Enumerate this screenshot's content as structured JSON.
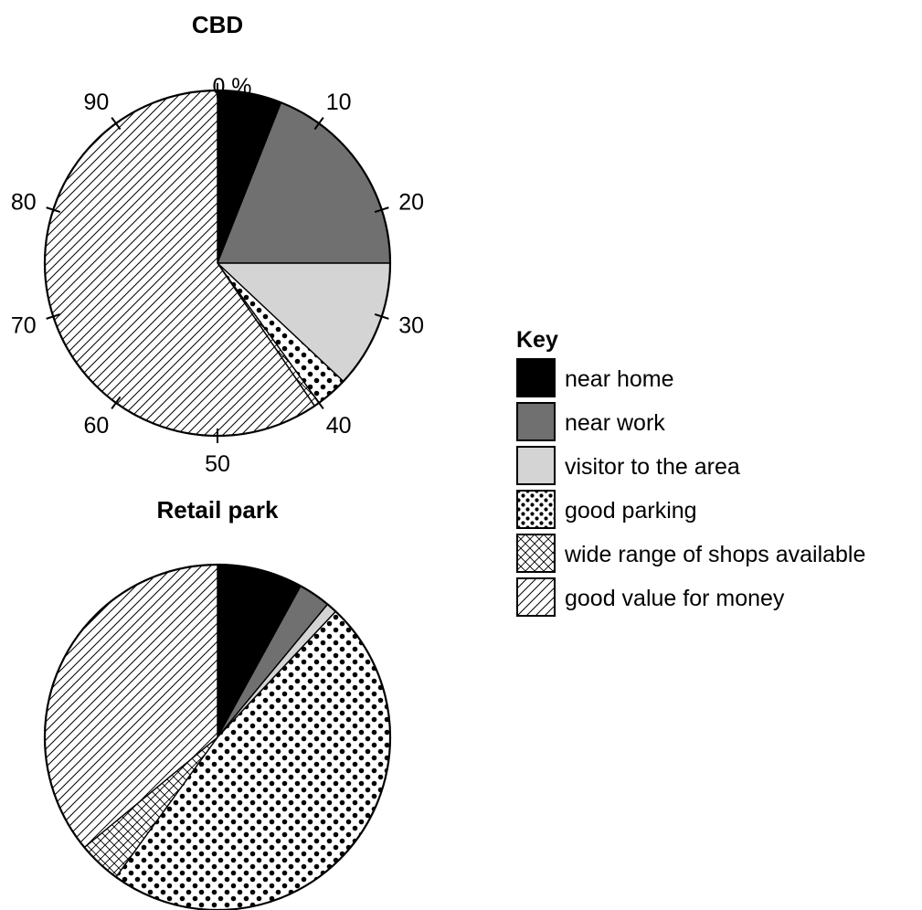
{
  "chart_data": [
    {
      "type": "pie",
      "title": "CBD",
      "unit_label": "%",
      "scale_ticks": [
        0,
        10,
        20,
        30,
        40,
        50,
        60,
        70,
        80,
        90
      ],
      "slices": [
        {
          "category": "near home",
          "value": 6
        },
        {
          "category": "near work",
          "value": 19
        },
        {
          "category": "visitor to the area",
          "value": 12
        },
        {
          "category": "good parking",
          "value": 3
        },
        {
          "category": "wide range of shops available",
          "value": 0.5
        },
        {
          "category": "good value for money",
          "value": 59.5
        }
      ]
    },
    {
      "type": "pie",
      "title": "Retail park",
      "slices": [
        {
          "category": "near home",
          "value": 8
        },
        {
          "category": "near work",
          "value": 3
        },
        {
          "category": "visitor to the area",
          "value": 1
        },
        {
          "category": "good parking",
          "value": 48
        },
        {
          "category": "wide range of shops available",
          "value": 4
        },
        {
          "category": "good value for money",
          "value": 36
        }
      ]
    }
  ],
  "legend": {
    "title": "Key",
    "items": [
      {
        "label": "near home",
        "fill": "solid",
        "color": "#000000"
      },
      {
        "label": "near work",
        "fill": "solid",
        "color": "#707070"
      },
      {
        "label": "visitor to the area",
        "fill": "solid",
        "color": "#d4d4d4"
      },
      {
        "label": "good parking",
        "fill": "dots",
        "color": "#000000"
      },
      {
        "label": "wide range of shops available",
        "fill": "crosshatch",
        "color": "#000000"
      },
      {
        "label": "good value for money",
        "fill": "diagonal",
        "color": "#000000"
      }
    ]
  }
}
